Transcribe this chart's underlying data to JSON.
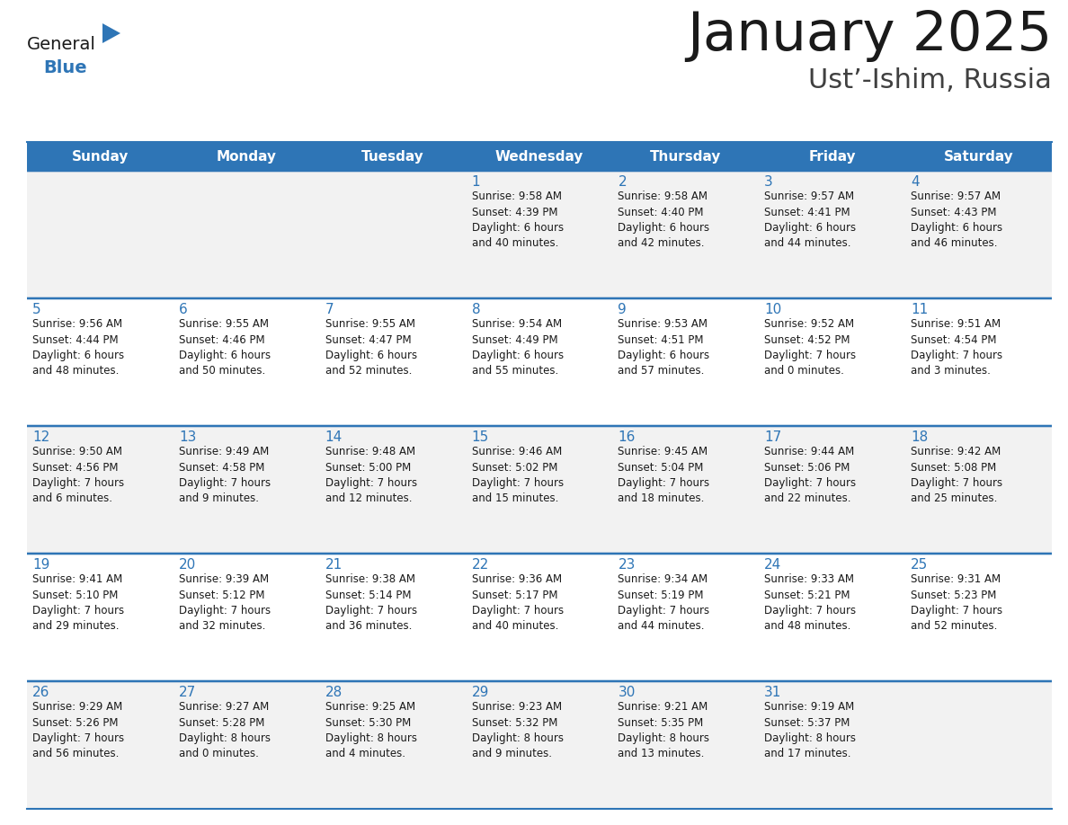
{
  "title": "January 2025",
  "subtitle": "Ust’-Ishim, Russia",
  "header_bg": "#2E75B6",
  "header_text_color": "#FFFFFF",
  "cell_bg_light": "#F2F2F2",
  "cell_bg_white": "#FFFFFF",
  "border_color": "#2E75B6",
  "day_headers": [
    "Sunday",
    "Monday",
    "Tuesday",
    "Wednesday",
    "Thursday",
    "Friday",
    "Saturday"
  ],
  "title_color": "#1a1a1a",
  "subtitle_color": "#404040",
  "day_number_color": "#2E75B6",
  "cell_text_color": "#1a1a1a",
  "logo_general_color": "#1a1a1a",
  "logo_blue_color": "#2E75B6",
  "logo_triangle_color": "#2E75B6",
  "calendar_data": [
    [
      {
        "day": "",
        "info": ""
      },
      {
        "day": "",
        "info": ""
      },
      {
        "day": "",
        "info": ""
      },
      {
        "day": "1",
        "info": "Sunrise: 9:58 AM\nSunset: 4:39 PM\nDaylight: 6 hours\nand 40 minutes."
      },
      {
        "day": "2",
        "info": "Sunrise: 9:58 AM\nSunset: 4:40 PM\nDaylight: 6 hours\nand 42 minutes."
      },
      {
        "day": "3",
        "info": "Sunrise: 9:57 AM\nSunset: 4:41 PM\nDaylight: 6 hours\nand 44 minutes."
      },
      {
        "day": "4",
        "info": "Sunrise: 9:57 AM\nSunset: 4:43 PM\nDaylight: 6 hours\nand 46 minutes."
      }
    ],
    [
      {
        "day": "5",
        "info": "Sunrise: 9:56 AM\nSunset: 4:44 PM\nDaylight: 6 hours\nand 48 minutes."
      },
      {
        "day": "6",
        "info": "Sunrise: 9:55 AM\nSunset: 4:46 PM\nDaylight: 6 hours\nand 50 minutes."
      },
      {
        "day": "7",
        "info": "Sunrise: 9:55 AM\nSunset: 4:47 PM\nDaylight: 6 hours\nand 52 minutes."
      },
      {
        "day": "8",
        "info": "Sunrise: 9:54 AM\nSunset: 4:49 PM\nDaylight: 6 hours\nand 55 minutes."
      },
      {
        "day": "9",
        "info": "Sunrise: 9:53 AM\nSunset: 4:51 PM\nDaylight: 6 hours\nand 57 minutes."
      },
      {
        "day": "10",
        "info": "Sunrise: 9:52 AM\nSunset: 4:52 PM\nDaylight: 7 hours\nand 0 minutes."
      },
      {
        "day": "11",
        "info": "Sunrise: 9:51 AM\nSunset: 4:54 PM\nDaylight: 7 hours\nand 3 minutes."
      }
    ],
    [
      {
        "day": "12",
        "info": "Sunrise: 9:50 AM\nSunset: 4:56 PM\nDaylight: 7 hours\nand 6 minutes."
      },
      {
        "day": "13",
        "info": "Sunrise: 9:49 AM\nSunset: 4:58 PM\nDaylight: 7 hours\nand 9 minutes."
      },
      {
        "day": "14",
        "info": "Sunrise: 9:48 AM\nSunset: 5:00 PM\nDaylight: 7 hours\nand 12 minutes."
      },
      {
        "day": "15",
        "info": "Sunrise: 9:46 AM\nSunset: 5:02 PM\nDaylight: 7 hours\nand 15 minutes."
      },
      {
        "day": "16",
        "info": "Sunrise: 9:45 AM\nSunset: 5:04 PM\nDaylight: 7 hours\nand 18 minutes."
      },
      {
        "day": "17",
        "info": "Sunrise: 9:44 AM\nSunset: 5:06 PM\nDaylight: 7 hours\nand 22 minutes."
      },
      {
        "day": "18",
        "info": "Sunrise: 9:42 AM\nSunset: 5:08 PM\nDaylight: 7 hours\nand 25 minutes."
      }
    ],
    [
      {
        "day": "19",
        "info": "Sunrise: 9:41 AM\nSunset: 5:10 PM\nDaylight: 7 hours\nand 29 minutes."
      },
      {
        "day": "20",
        "info": "Sunrise: 9:39 AM\nSunset: 5:12 PM\nDaylight: 7 hours\nand 32 minutes."
      },
      {
        "day": "21",
        "info": "Sunrise: 9:38 AM\nSunset: 5:14 PM\nDaylight: 7 hours\nand 36 minutes."
      },
      {
        "day": "22",
        "info": "Sunrise: 9:36 AM\nSunset: 5:17 PM\nDaylight: 7 hours\nand 40 minutes."
      },
      {
        "day": "23",
        "info": "Sunrise: 9:34 AM\nSunset: 5:19 PM\nDaylight: 7 hours\nand 44 minutes."
      },
      {
        "day": "24",
        "info": "Sunrise: 9:33 AM\nSunset: 5:21 PM\nDaylight: 7 hours\nand 48 minutes."
      },
      {
        "day": "25",
        "info": "Sunrise: 9:31 AM\nSunset: 5:23 PM\nDaylight: 7 hours\nand 52 minutes."
      }
    ],
    [
      {
        "day": "26",
        "info": "Sunrise: 9:29 AM\nSunset: 5:26 PM\nDaylight: 7 hours\nand 56 minutes."
      },
      {
        "day": "27",
        "info": "Sunrise: 9:27 AM\nSunset: 5:28 PM\nDaylight: 8 hours\nand 0 minutes."
      },
      {
        "day": "28",
        "info": "Sunrise: 9:25 AM\nSunset: 5:30 PM\nDaylight: 8 hours\nand 4 minutes."
      },
      {
        "day": "29",
        "info": "Sunrise: 9:23 AM\nSunset: 5:32 PM\nDaylight: 8 hours\nand 9 minutes."
      },
      {
        "day": "30",
        "info": "Sunrise: 9:21 AM\nSunset: 5:35 PM\nDaylight: 8 hours\nand 13 minutes."
      },
      {
        "day": "31",
        "info": "Sunrise: 9:19 AM\nSunset: 5:37 PM\nDaylight: 8 hours\nand 17 minutes."
      },
      {
        "day": "",
        "info": ""
      }
    ]
  ]
}
